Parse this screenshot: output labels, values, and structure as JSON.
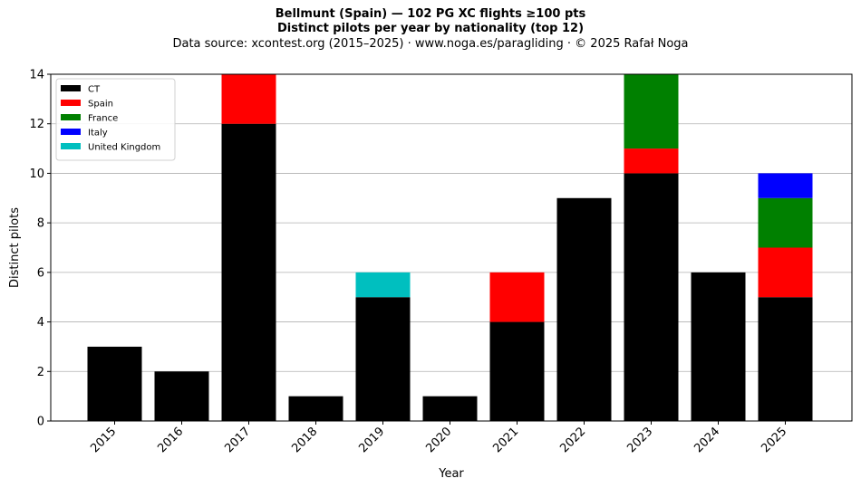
{
  "chart_data": {
    "type": "bar",
    "stacked": true,
    "title": "Bellmunt (Spain)  —  102 PG XC flights ≥100 pts",
    "title_line2": "Distinct pilots per year by nationality (top 12)",
    "subtitle": "Data source: xcontest.org (2015–2025)  ·  www.noga.es/paragliding  ·  © 2025 Rafał Noga",
    "xlabel": "Year",
    "ylabel": "Distinct pilots",
    "ylim": [
      0,
      14
    ],
    "yticks": [
      0,
      2,
      4,
      6,
      8,
      10,
      12,
      14
    ],
    "grid": "horizontal",
    "legend_position": "top-left",
    "categories": [
      "2015",
      "2016",
      "2017",
      "2018",
      "2019",
      "2020",
      "2021",
      "2022",
      "2023",
      "2024",
      "2025"
    ],
    "series": [
      {
        "name": "CT",
        "color": "#000000",
        "values": [
          3,
          2,
          12,
          1,
          5,
          1,
          4,
          9,
          10,
          6,
          5
        ]
      },
      {
        "name": "Spain",
        "color": "#ff0000",
        "values": [
          0,
          0,
          2,
          0,
          0,
          0,
          2,
          0,
          1,
          0,
          2
        ]
      },
      {
        "name": "France",
        "color": "#008000",
        "values": [
          0,
          0,
          0,
          0,
          0,
          0,
          0,
          0,
          3,
          0,
          2
        ]
      },
      {
        "name": "Italy",
        "color": "#0000ff",
        "values": [
          0,
          0,
          0,
          0,
          0,
          0,
          0,
          0,
          0,
          0,
          1
        ]
      },
      {
        "name": "United Kingdom",
        "color": "#00bfbf",
        "values": [
          0,
          0,
          0,
          0,
          1,
          0,
          0,
          0,
          0,
          0,
          0
        ]
      }
    ]
  }
}
